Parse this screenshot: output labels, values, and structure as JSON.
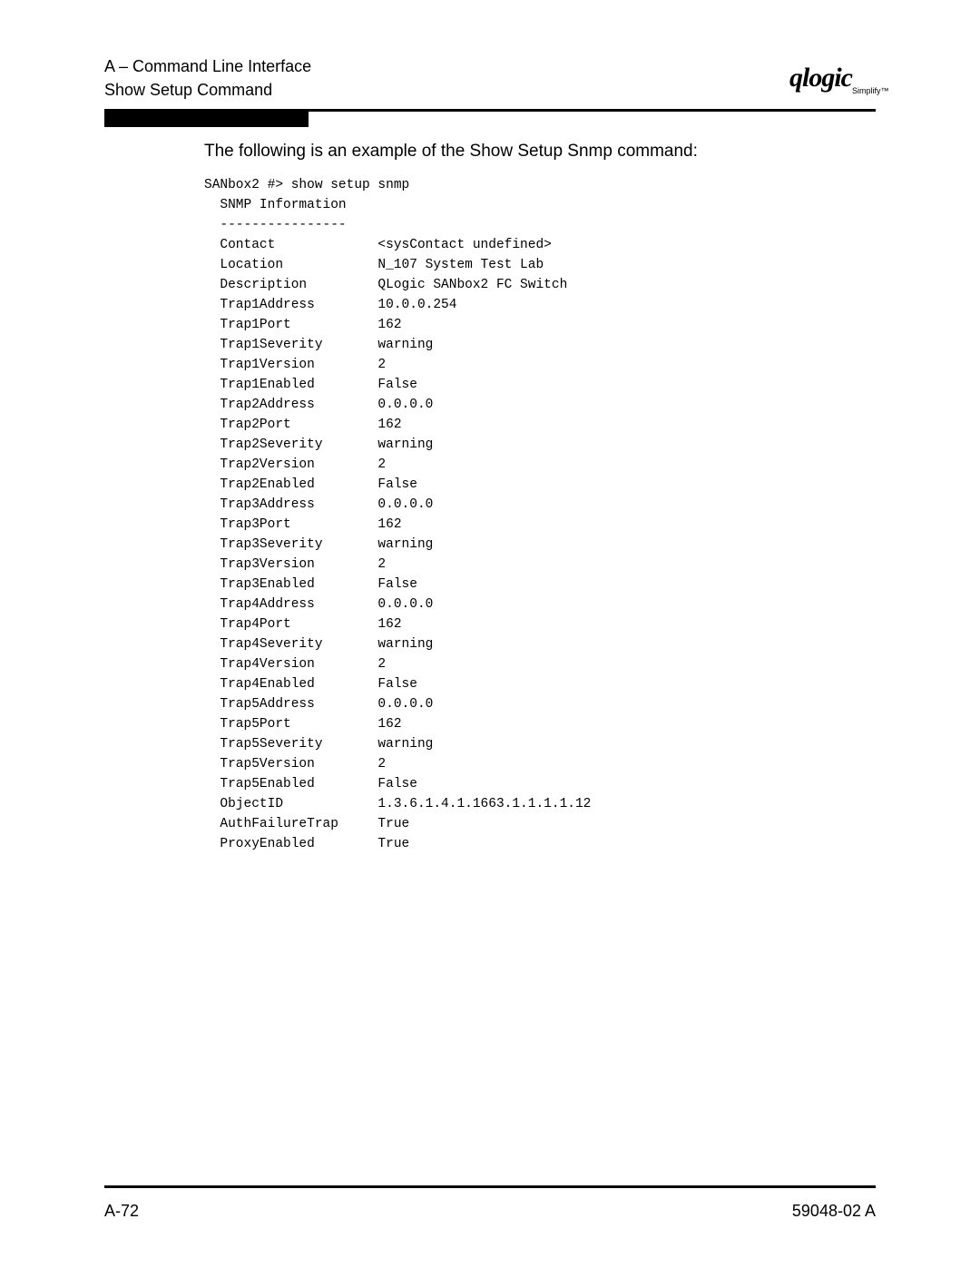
{
  "header": {
    "line1": "A – Command Line Interface",
    "line2": "Show Setup Command",
    "logo_main": "qlogic",
    "logo_sub": "Simplify™"
  },
  "intro": "The following is an example of the Show Setup Snmp command:",
  "terminal": {
    "prompt": "SANbox2 #> show setup snmp",
    "section_title": "SNMP Information",
    "divider": "----------------",
    "rows": [
      {
        "k": "Contact",
        "v": "<sysContact undefined>"
      },
      {
        "k": "Location",
        "v": "N_107 System Test Lab"
      },
      {
        "k": "Description",
        "v": "QLogic SANbox2 FC Switch"
      },
      {
        "k": "Trap1Address",
        "v": "10.0.0.254"
      },
      {
        "k": "Trap1Port",
        "v": "162"
      },
      {
        "k": "Trap1Severity",
        "v": "warning"
      },
      {
        "k": "Trap1Version",
        "v": "2"
      },
      {
        "k": "Trap1Enabled",
        "v": "False"
      },
      {
        "k": "Trap2Address",
        "v": "0.0.0.0"
      },
      {
        "k": "Trap2Port",
        "v": "162"
      },
      {
        "k": "Trap2Severity",
        "v": "warning"
      },
      {
        "k": "Trap2Version",
        "v": "2"
      },
      {
        "k": "Trap2Enabled",
        "v": "False"
      },
      {
        "k": "Trap3Address",
        "v": "0.0.0.0"
      },
      {
        "k": "Trap3Port",
        "v": "162"
      },
      {
        "k": "Trap3Severity",
        "v": "warning"
      },
      {
        "k": "Trap3Version",
        "v": "2"
      },
      {
        "k": "Trap3Enabled",
        "v": "False"
      },
      {
        "k": "Trap4Address",
        "v": "0.0.0.0"
      },
      {
        "k": "Trap4Port",
        "v": "162"
      },
      {
        "k": "Trap4Severity",
        "v": "warning"
      },
      {
        "k": "Trap4Version",
        "v": "2"
      },
      {
        "k": "Trap4Enabled",
        "v": "False"
      },
      {
        "k": "Trap5Address",
        "v": "0.0.0.0"
      },
      {
        "k": "Trap5Port",
        "v": "162"
      },
      {
        "k": "Trap5Severity",
        "v": "warning"
      },
      {
        "k": "Trap5Version",
        "v": "2"
      },
      {
        "k": "Trap5Enabled",
        "v": "False"
      },
      {
        "k": "ObjectID",
        "v": "1.3.6.1.4.1.1663.1.1.1.1.12"
      },
      {
        "k": "AuthFailureTrap",
        "v": "True"
      },
      {
        "k": "ProxyEnabled",
        "v": "True"
      }
    ],
    "key_col_width": 20,
    "indent": "  "
  },
  "footer": {
    "left": "A-72",
    "right": "59048-02 A"
  },
  "colors": {
    "text": "#000000",
    "background": "#ffffff",
    "rule": "#000000"
  }
}
